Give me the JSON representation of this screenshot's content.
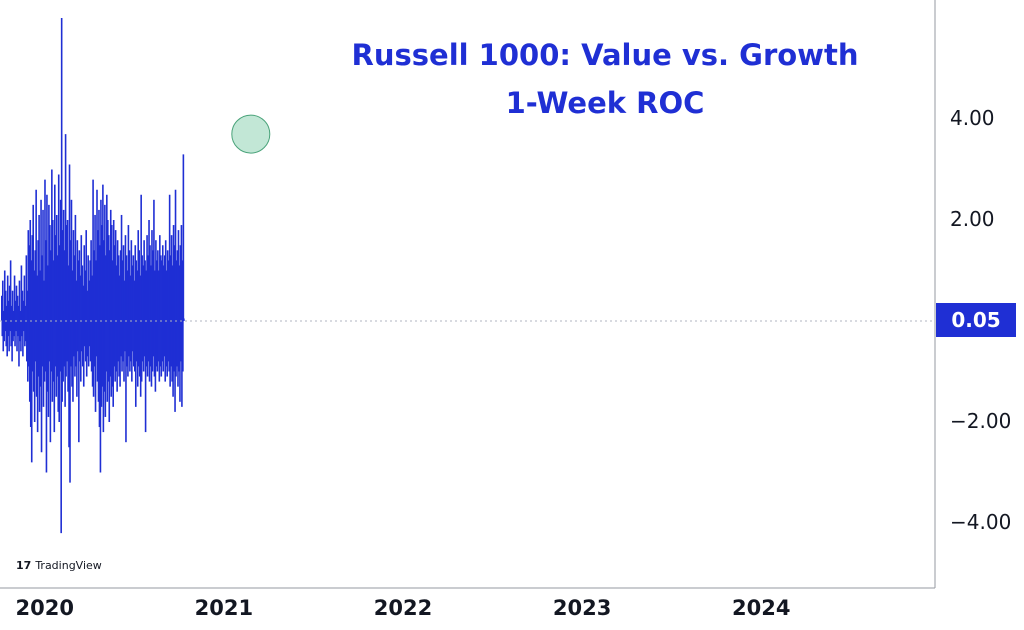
{
  "chart_data": {
    "type": "bar",
    "title": "Russell 1000: Value vs. Growth",
    "subtitle": "1-Week ROC",
    "ylim": [
      -5.0,
      6.0
    ],
    "y_ticks": [
      "4.00",
      "2.00",
      "−2.00",
      "−4.00"
    ],
    "y_tick_values": [
      4,
      2,
      -2,
      -4
    ],
    "x_ticks": [
      "2020",
      "2021",
      "2022",
      "2023",
      "2024"
    ],
    "x_tick_values": [
      2020.0,
      2021.0,
      2022.0,
      2023.0,
      2024.0
    ],
    "xlim": [
      2019.75,
      2024.97
    ],
    "grid": false,
    "last_value_label": "0.05",
    "last_value": 0.05,
    "bar_color": "#1f2fd4",
    "highlight": {
      "x": 2021.15,
      "y": 3.7,
      "color": "#8fd3b4"
    },
    "series": [
      {
        "x_start": 2019.76,
        "x_step": 0.00274,
        "values_note": "",
        "values": [
          0.5,
          -0.3,
          0.8,
          -0.6,
          0.2,
          -0.4,
          1.0,
          -0.2,
          0.6,
          -0.5,
          0.3,
          -0.7,
          0.9,
          -0.3,
          0.4,
          -0.6,
          0.7,
          -0.2,
          1.2,
          -0.5,
          0.3,
          -0.8,
          0.6,
          -0.4,
          0.2,
          -0.3,
          0.9,
          -0.5,
          0.4,
          -0.2,
          0.7,
          -0.6,
          0.5,
          -0.3,
          0.3,
          -0.9,
          0.8,
          -0.4,
          0.2,
          -0.6,
          1.1,
          -0.3,
          0.6,
          -0.7,
          0.4,
          -0.2,
          0.9,
          -0.5,
          0.3,
          -0.4,
          1.3,
          -0.8,
          0.6,
          -1.2,
          1.8,
          -0.9,
          1.5,
          -1.6,
          2.0,
          -2.1,
          1.2,
          -2.8,
          1.7,
          -1.0,
          2.3,
          -1.4,
          1.0,
          -2.0,
          1.4,
          -0.8,
          2.6,
          -1.5,
          0.9,
          -2.2,
          1.6,
          -1.1,
          2.1,
          -1.8,
          1.0,
          -1.3,
          2.4,
          -2.6,
          1.3,
          -0.9,
          2.2,
          -1.7,
          0.8,
          -1.2,
          2.8,
          -1.0,
          1.6,
          -3.0,
          2.5,
          -1.4,
          1.1,
          -1.9,
          2.3,
          -0.8,
          1.9,
          -2.4,
          1.4,
          -1.0,
          3.0,
          -1.6,
          2.0,
          -1.2,
          1.2,
          -2.2,
          2.7,
          -0.9,
          1.7,
          -1.5,
          2.1,
          -1.1,
          1.3,
          -1.8,
          2.9,
          -2.0,
          1.5,
          -1.0,
          2.4,
          -4.2,
          6.0,
          -1.6,
          1.8,
          -1.2,
          2.2,
          -0.9,
          1.4,
          -1.7,
          3.7,
          -1.1,
          1.9,
          -0.8,
          2.0,
          -1.4,
          1.1,
          -2.5,
          3.1,
          -3.2,
          1.6,
          -0.9,
          2.4,
          -1.3,
          1.0,
          -1.6,
          1.8,
          -0.7,
          1.3,
          -1.1,
          2.1,
          -0.9,
          0.8,
          -1.5,
          1.6,
          -0.6,
          1.2,
          -2.4,
          1.4,
          -0.8,
          0.9,
          -1.2,
          1.7,
          -0.6,
          1.1,
          -0.9,
          0.7,
          -1.3,
          1.5,
          -0.5,
          1.0,
          -0.8,
          1.8,
          -1.1,
          0.6,
          -0.7,
          1.3,
          -0.9,
          0.8,
          -0.5,
          1.2,
          -0.8,
          1.6,
          -1.0,
          0.9,
          -1.3,
          2.8,
          -1.5,
          1.4,
          -0.9,
          2.1,
          -1.8,
          1.2,
          -0.7,
          2.6,
          -1.2,
          1.8,
          -1.6,
          2.2,
          -2.1,
          1.5,
          -3.0,
          2.4,
          -1.7,
          1.9,
          -1.3,
          2.7,
          -2.2,
          1.6,
          -1.4,
          2.3,
          -1.9,
          1.3,
          -1.0,
          2.5,
          -1.6,
          2.0,
          -1.2,
          1.7,
          -2.0,
          1.4,
          -1.1,
          2.2,
          -1.5,
          1.9,
          -1.3,
          1.2,
          -1.7,
          2.0,
          -0.9,
          1.5,
          -1.2,
          1.8,
          -1.0,
          1.1,
          -1.4,
          1.6,
          -0.8,
          1.3,
          -1.1,
          0.9,
          -1.3,
          1.4,
          -0.7,
          2.1,
          -1.0,
          1.2,
          -0.8,
          1.5,
          -1.2,
          0.8,
          -0.6,
          1.7,
          -2.4,
          1.3,
          -0.9,
          1.0,
          -1.1,
          1.9,
          -0.7,
          1.4,
          -1.0,
          0.9,
          -0.8,
          1.6,
          -1.2,
          1.1,
          -0.6,
          1.3,
          -0.9,
          0.8,
          -1.0,
          1.5,
          -1.7,
          1.2,
          -0.8,
          1.0,
          -1.3,
          1.8,
          -0.9,
          1.4,
          -1.1,
          0.9,
          -1.5,
          2.5,
          -1.2,
          1.3,
          -0.8,
          1.1,
          -1.0,
          1.6,
          -0.7,
          1.2,
          -2.2,
          1.0,
          -0.9,
          1.7,
          -1.1,
          1.3,
          -0.8,
          2.0,
          -1.2,
          1.5,
          -0.9,
          1.1,
          -1.3,
          1.8,
          -1.0,
          1.4,
          -0.7,
          2.4,
          -1.1,
          1.0,
          -1.4,
          1.6,
          -0.9,
          1.2,
          -1.0,
          1.4,
          -0.8,
          1.0,
          -1.2,
          1.7,
          -0.9,
          1.3,
          -1.1,
          1.2,
          -0.8,
          1.5,
          -1.0,
          1.1,
          -0.7,
          1.3,
          -1.2,
          1.6,
          -0.9,
          1.0,
          -1.1,
          1.4,
          -0.8,
          1.2,
          -1.0,
          2.5,
          -1.3,
          1.3,
          -0.9,
          1.7,
          -1.2,
          1.1,
          -1.5,
          1.9,
          -1.0,
          1.5,
          -1.8,
          2.6,
          -1.1,
          1.2,
          -0.9,
          1.4,
          -1.3,
          1.8,
          -1.0,
          1.1,
          -1.6,
          1.5,
          -0.8,
          1.9,
          -1.7,
          1.2,
          -1.0,
          3.3,
          0.05
        ]
      }
    ]
  },
  "branding": {
    "logo_text": "17",
    "name": "TradingView"
  }
}
